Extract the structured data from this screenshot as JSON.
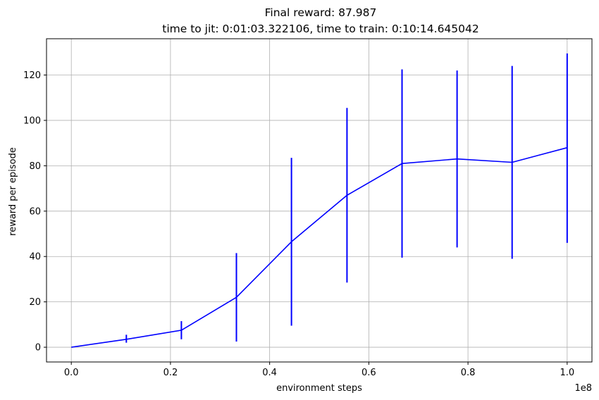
{
  "chart_data": {
    "type": "line",
    "title_line1": "Final reward: 87.987",
    "title_line2": "time to jit: 0:01:03.322106, time to train: 0:10:14.645042",
    "xlabel": "environment steps",
    "ylabel": "reward per episode",
    "x_offset_label": "1e8",
    "xlim": [
      -0.05,
      1.05
    ],
    "ylim": [
      -6.5,
      136
    ],
    "x_ticks": [
      0.0,
      0.2,
      0.4,
      0.6,
      0.8,
      1.0
    ],
    "x_tick_labels": [
      "0.0",
      "0.2",
      "0.4",
      "0.6",
      "0.8",
      "1.0"
    ],
    "y_ticks": [
      0,
      20,
      40,
      60,
      80,
      100,
      120
    ],
    "y_tick_labels": [
      "0",
      "20",
      "40",
      "60",
      "80",
      "100",
      "120"
    ],
    "grid": true,
    "series": [
      {
        "color": "#0000ff",
        "points": [
          {
            "x": 0.0,
            "y": 0.0,
            "yerr_low": 0.0,
            "yerr_high": 0.0
          },
          {
            "x": 0.111,
            "y": 3.5,
            "yerr_low": 2.0,
            "yerr_high": 5.5
          },
          {
            "x": 0.222,
            "y": 7.5,
            "yerr_low": 3.5,
            "yerr_high": 11.5
          },
          {
            "x": 0.333,
            "y": 22.0,
            "yerr_low": 2.5,
            "yerr_high": 41.5
          },
          {
            "x": 0.444,
            "y": 46.5,
            "yerr_low": 9.5,
            "yerr_high": 83.5
          },
          {
            "x": 0.556,
            "y": 67.0,
            "yerr_low": 28.5,
            "yerr_high": 105.5
          },
          {
            "x": 0.667,
            "y": 81.0,
            "yerr_low": 39.5,
            "yerr_high": 122.5
          },
          {
            "x": 0.778,
            "y": 83.0,
            "yerr_low": 44.0,
            "yerr_high": 122.0
          },
          {
            "x": 0.889,
            "y": 81.5,
            "yerr_low": 39.0,
            "yerr_high": 124.0
          },
          {
            "x": 1.0,
            "y": 87.987,
            "yerr_low": 46.0,
            "yerr_high": 129.5
          }
        ]
      }
    ]
  }
}
